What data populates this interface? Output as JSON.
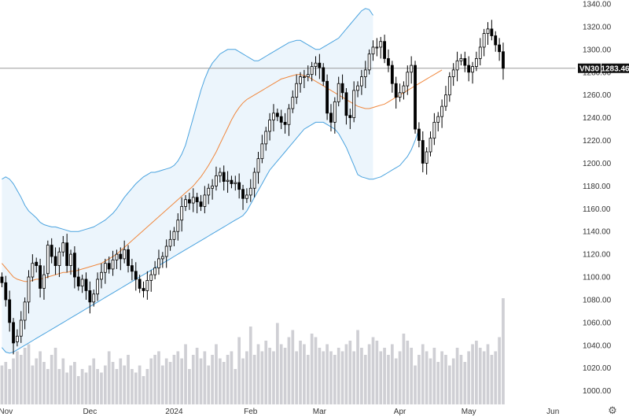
{
  "settings_icon": "gear-icon",
  "colors": {
    "band_fill": "#e9f3fb",
    "band_line": "#4aa3df",
    "mid_line": "#f0883e",
    "up_candle": "#ffffff",
    "down_candle": "#000000",
    "volume": "#cfcfd4",
    "last_price_line": "#9a9a9a",
    "price_tag_bg": "#111111",
    "price_tag_fg": "#ffffff"
  },
  "chart_data": {
    "type": "candlestick",
    "title": "",
    "symbol_label": "VN30",
    "last_price_label": "1283.46",
    "last_price": 1283.46,
    "y_range": [
      988,
      1340
    ],
    "y_ticks": [
      "1000.00",
      "1020.00",
      "1040.00",
      "1060.00",
      "1080.00",
      "1100.00",
      "1120.00",
      "1140.00",
      "1160.00",
      "1180.00",
      "1200.00",
      "1220.00",
      "1240.00",
      "1260.00",
      "1280.00",
      "1300.00",
      "1320.00",
      "1340.00"
    ],
    "x_ticks": [
      {
        "label": "Nov",
        "index": 1
      },
      {
        "label": "Dec",
        "index": 23
      },
      {
        "label": "2024",
        "index": 45
      },
      {
        "label": "Feb",
        "index": 65
      },
      {
        "label": "Mar",
        "index": 83
      },
      {
        "label": "Apr",
        "index": 104
      },
      {
        "label": "May",
        "index": 122
      },
      {
        "label": "Jun",
        "index": 144
      }
    ],
    "total_slots": 150,
    "indicators": [
      "Bollinger Bands upper",
      "Bollinger Bands middle",
      "Bollinger Bands lower",
      "Volume"
    ],
    "close": [
      1095,
      1080,
      1060,
      1042,
      1048,
      1062,
      1078,
      1100,
      1112,
      1110,
      1090,
      1102,
      1128,
      1118,
      1110,
      1122,
      1130,
      1110,
      1120,
      1100,
      1092,
      1098,
      1088,
      1078,
      1085,
      1098,
      1104,
      1112,
      1107,
      1115,
      1120,
      1116,
      1124,
      1110,
      1105,
      1098,
      1090,
      1088,
      1097,
      1102,
      1108,
      1116,
      1118,
      1127,
      1133,
      1140,
      1150,
      1162,
      1168,
      1165,
      1170,
      1166,
      1162,
      1172,
      1178,
      1180,
      1189,
      1192,
      1184,
      1185,
      1182,
      1183,
      1177,
      1169,
      1172,
      1178,
      1192,
      1204,
      1217,
      1228,
      1238,
      1244,
      1241,
      1236,
      1234,
      1248,
      1258,
      1270,
      1276,
      1276,
      1278,
      1285,
      1288,
      1284,
      1272,
      1244,
      1236,
      1254,
      1270,
      1262,
      1242,
      1240,
      1264,
      1268,
      1276,
      1282,
      1296,
      1302,
      1302,
      1307,
      1292,
      1286,
      1270,
      1258,
      1262,
      1268,
      1280,
      1286,
      1230,
      1220,
      1200,
      1210,
      1222,
      1236,
      1241,
      1250,
      1260,
      1276,
      1282,
      1290,
      1292,
      1286,
      1280,
      1285,
      1292,
      1302,
      1314,
      1318,
      1312,
      1304,
      1298,
      1283.46
    ],
    "open": [
      1100,
      1095,
      1080,
      1060,
      1043,
      1048,
      1062,
      1078,
      1100,
      1113,
      1110,
      1090,
      1103,
      1128,
      1118,
      1110,
      1122,
      1130,
      1110,
      1121,
      1100,
      1092,
      1098,
      1088,
      1078,
      1085,
      1098,
      1104,
      1112,
      1107,
      1115,
      1120,
      1116,
      1124,
      1110,
      1105,
      1098,
      1090,
      1088,
      1097,
      1102,
      1108,
      1116,
      1118,
      1127,
      1133,
      1140,
      1150,
      1162,
      1168,
      1165,
      1170,
      1166,
      1162,
      1172,
      1178,
      1180,
      1189,
      1192,
      1184,
      1185,
      1182,
      1183,
      1177,
      1169,
      1172,
      1178,
      1192,
      1204,
      1217,
      1228,
      1238,
      1244,
      1241,
      1236,
      1234,
      1248,
      1258,
      1270,
      1276,
      1276,
      1278,
      1285,
      1288,
      1284,
      1272,
      1244,
      1236,
      1254,
      1270,
      1262,
      1242,
      1240,
      1264,
      1268,
      1276,
      1282,
      1296,
      1302,
      1302,
      1307,
      1292,
      1286,
      1270,
      1258,
      1262,
      1268,
      1280,
      1286,
      1230,
      1220,
      1200,
      1210,
      1222,
      1236,
      1241,
      1250,
      1260,
      1276,
      1282,
      1290,
      1292,
      1286,
      1280,
      1285,
      1292,
      1302,
      1314,
      1318,
      1312,
      1304,
      1298
    ],
    "volume": [
      22,
      24,
      20,
      26,
      30,
      28,
      32,
      34,
      22,
      26,
      30,
      24,
      20,
      28,
      32,
      20,
      26,
      18,
      22,
      24,
      16,
      20,
      18,
      22,
      26,
      20,
      18,
      22,
      30,
      24,
      20,
      26,
      22,
      28,
      20,
      18,
      22,
      16,
      20,
      26,
      28,
      30,
      22,
      26,
      24,
      28,
      30,
      26,
      34,
      20,
      28,
      32,
      26,
      30,
      22,
      28,
      34,
      26,
      24,
      28,
      30,
      20,
      38,
      26,
      30,
      44,
      28,
      34,
      30,
      36,
      32,
      30,
      46,
      34,
      32,
      38,
      42,
      30,
      36,
      34,
      28,
      40,
      38,
      32,
      30,
      34,
      30,
      28,
      32,
      30,
      34,
      36,
      30,
      42,
      32,
      28,
      34,
      38,
      36,
      30,
      32,
      28,
      34,
      26,
      30,
      40,
      36,
      32,
      22,
      28,
      34,
      30,
      26,
      32,
      24,
      30,
      28,
      22,
      26,
      32,
      28,
      24,
      30,
      34,
      36,
      32,
      30,
      34,
      28,
      30,
      38,
      60
    ],
    "bb_upper": [
      1186,
      1188,
      1186,
      1182,
      1176,
      1170,
      1163,
      1158,
      1155,
      1152,
      1148,
      1146,
      1145,
      1144,
      1144,
      1143,
      1142,
      1141,
      1140,
      1140,
      1140,
      1141,
      1142,
      1143,
      1144,
      1146,
      1148,
      1150,
      1153,
      1156,
      1160,
      1165,
      1170,
      1174,
      1178,
      1182,
      1185,
      1188,
      1190,
      1192,
      1192,
      1193,
      1194,
      1195,
      1196,
      1198,
      1202,
      1208,
      1216,
      1228,
      1240,
      1252,
      1264,
      1274,
      1282,
      1288,
      1292,
      1296,
      1298,
      1300,
      1300,
      1300,
      1298,
      1296,
      1294,
      1292,
      1290,
      1290,
      1292,
      1294,
      1296,
      1298,
      1300,
      1302,
      1304,
      1306,
      1307,
      1308,
      1308,
      1306,
      1304,
      1302,
      1300,
      1300,
      1302,
      1304,
      1306,
      1308,
      1310,
      1314,
      1318,
      1322,
      1326,
      1330,
      1334,
      1336,
      1335,
      1330
    ],
    "bb_mid": [
      1112,
      1108,
      1104,
      1100,
      1098,
      1097,
      1096,
      1096,
      1097,
      1098,
      1098,
      1099,
      1100,
      1101,
      1102,
      1103,
      1104,
      1104,
      1105,
      1105,
      1106,
      1107,
      1108,
      1109,
      1110,
      1111,
      1112,
      1114,
      1116,
      1118,
      1120,
      1123,
      1126,
      1129,
      1132,
      1135,
      1138,
      1141,
      1144,
      1147,
      1150,
      1153,
      1156,
      1159,
      1162,
      1165,
      1168,
      1171,
      1174,
      1177,
      1180,
      1184,
      1188,
      1193,
      1198,
      1204,
      1210,
      1217,
      1224,
      1231,
      1238,
      1244,
      1249,
      1253,
      1256,
      1258,
      1260,
      1262,
      1264,
      1266,
      1268,
      1270,
      1272,
      1274,
      1275,
      1276,
      1277,
      1278,
      1278,
      1277,
      1276,
      1274,
      1272,
      1270,
      1268,
      1266,
      1264,
      1262,
      1260,
      1258,
      1256,
      1254,
      1252,
      1250,
      1249,
      1248,
      1248,
      1249,
      1250,
      1251,
      1252,
      1254,
      1256,
      1258,
      1260,
      1262,
      1264,
      1266,
      1268,
      1270,
      1272,
      1274,
      1276,
      1278,
      1280,
      1282
    ],
    "bb_lower": [
      1038,
      1034,
      1033,
      1034,
      1036,
      1038,
      1040,
      1042,
      1044,
      1046,
      1048,
      1050,
      1052,
      1054,
      1056,
      1058,
      1060,
      1062,
      1064,
      1066,
      1068,
      1070,
      1072,
      1074,
      1076,
      1078,
      1080,
      1082,
      1084,
      1086,
      1088,
      1090,
      1092,
      1094,
      1096,
      1098,
      1100,
      1102,
      1104,
      1106,
      1108,
      1110,
      1112,
      1114,
      1116,
      1118,
      1120,
      1122,
      1124,
      1126,
      1128,
      1130,
      1132,
      1134,
      1136,
      1138,
      1140,
      1142,
      1144,
      1146,
      1148,
      1150,
      1152,
      1154,
      1158,
      1164,
      1170,
      1176,
      1182,
      1188,
      1194,
      1198,
      1202,
      1206,
      1210,
      1214,
      1218,
      1222,
      1226,
      1230,
      1232,
      1234,
      1236,
      1236,
      1236,
      1234,
      1232,
      1230,
      1226,
      1220,
      1214,
      1206,
      1198,
      1190,
      1188,
      1187,
      1186,
      1186,
      1187,
      1188,
      1190,
      1192,
      1194,
      1196,
      1198,
      1202,
      1206,
      1212,
      1220,
      1230
    ]
  }
}
